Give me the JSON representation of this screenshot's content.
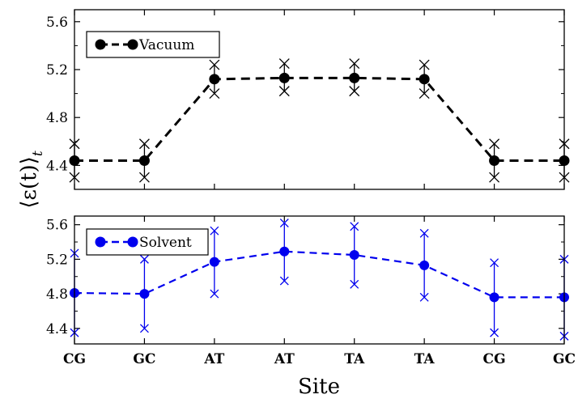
{
  "chart_data": [
    {
      "type": "line",
      "panel": "top",
      "categories": [
        "CG",
        "GC",
        "AT",
        "AT",
        "TA",
        "TA",
        "CG",
        "GC"
      ],
      "categories_display": [
        [
          {
            "t": "C",
            "b": false
          },
          {
            "t": "G",
            "b": true
          }
        ],
        [
          {
            "t": "G",
            "b": false
          },
          {
            "t": "C",
            "b": false
          }
        ],
        [
          {
            "t": "A",
            "b": false
          },
          {
            "t": "T",
            "b": true
          }
        ],
        [
          {
            "t": "A",
            "b": false
          },
          {
            "t": "T",
            "b": true
          }
        ],
        [
          {
            "t": "T",
            "b": false
          },
          {
            "t": "A",
            "b": true
          }
        ],
        [
          {
            "t": "T",
            "b": false
          },
          {
            "t": "A",
            "b": true
          }
        ],
        [
          {
            "t": "C",
            "b": false
          },
          {
            "t": "G",
            "b": true
          }
        ],
        [
          {
            "t": "G",
            "b": false
          },
          {
            "t": "C",
            "b": false
          }
        ]
      ],
      "series": [
        {
          "name": "Vacuum",
          "color": "#000000",
          "values": [
            4.44,
            4.44,
            5.12,
            5.13,
            5.13,
            5.12,
            4.44,
            4.44
          ],
          "err_low": [
            4.3,
            4.3,
            5.0,
            5.02,
            5.02,
            5.0,
            4.3,
            4.3
          ],
          "err_high": [
            4.58,
            4.58,
            5.24,
            5.25,
            5.25,
            5.24,
            4.58,
            4.58
          ]
        }
      ],
      "ylim": [
        4.2,
        5.7
      ],
      "yticks": [
        "4.4",
        "4.8",
        "5.2",
        "5.6"
      ],
      "ylabel": "⟨ε(t)⟩",
      "ylabel_sub": "t",
      "legend_position": "top-left"
    },
    {
      "type": "line",
      "panel": "bottom",
      "series": [
        {
          "name": "Solvent",
          "color": "#0000ee",
          "values": [
            4.81,
            4.8,
            5.17,
            5.29,
            5.25,
            5.13,
            4.76,
            4.76
          ],
          "err_low": [
            4.35,
            4.4,
            4.8,
            4.95,
            4.91,
            4.76,
            4.35,
            4.31
          ],
          "err_high": [
            5.27,
            5.2,
            5.53,
            5.62,
            5.58,
            5.5,
            5.16,
            5.2
          ]
        }
      ],
      "ylim": [
        4.22,
        5.7
      ],
      "yticks": [
        "4.4",
        "4.8",
        "5.2",
        "5.6"
      ],
      "xlabel": "Site",
      "legend_position": "top-left"
    }
  ]
}
